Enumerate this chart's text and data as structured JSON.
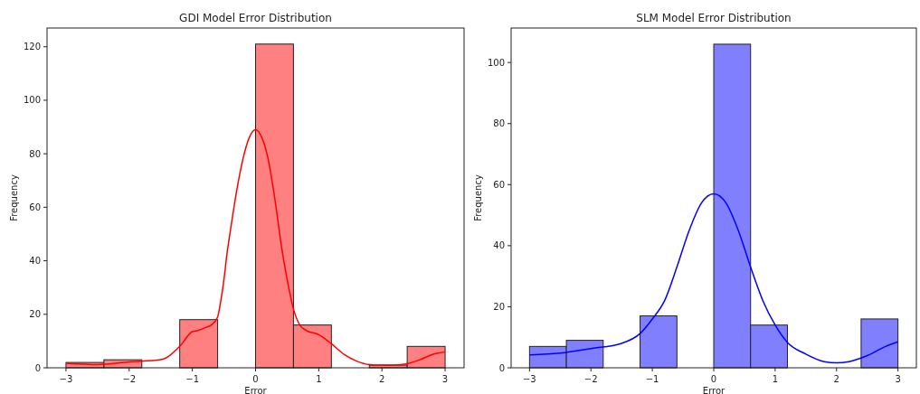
{
  "chart_data": [
    {
      "type": "histogram",
      "title": "GDI Model Error Distribution",
      "xlabel": "Error",
      "ylabel": "Frequency",
      "xlim": [
        -3.3,
        3.3
      ],
      "ylim": [
        0,
        127
      ],
      "xticks": [
        {
          "value": -3,
          "label": "−3"
        },
        {
          "value": -2,
          "label": "−2"
        },
        {
          "value": -1,
          "label": "−1"
        },
        0,
        1,
        2,
        3
      ],
      "yticks": [
        0,
        20,
        40,
        60,
        80,
        100,
        120
      ],
      "series": [
        {
          "color": "#ff8080",
          "bins": [
            -3,
            -2.4,
            -1.8,
            -1.2,
            -0.6,
            0,
            0.6,
            1.2,
            1.8,
            2.4,
            3
          ],
          "values": [
            2,
            3,
            0,
            18,
            0,
            121,
            16,
            0,
            1,
            8
          ]
        },
        {
          "type": "line",
          "color": "#ff0000",
          "x": [
            -3,
            -2.5,
            -2,
            -1.5,
            -1.2,
            -1,
            -0.9,
            -0.8,
            -0.7,
            -0.6,
            -0.55,
            -0.5,
            -0.45,
            -0.4,
            -0.3,
            -0.2,
            -0.1,
            0,
            0.1,
            0.2,
            0.3,
            0.4,
            0.5,
            0.6,
            0.7,
            0.8,
            1,
            1.2,
            1.4,
            1.6,
            1.8,
            2,
            2.2,
            2.4,
            2.6,
            2.8,
            3
          ],
          "values": [
            1.7,
            1.2,
            2.2,
            3,
            8,
            13.5,
            14,
            15,
            16,
            19,
            25,
            33,
            43,
            51,
            66,
            78,
            86,
            89,
            86,
            78,
            64,
            47,
            33,
            22,
            16,
            14,
            12.4,
            9,
            5,
            2.5,
            1.2,
            1,
            1,
            1.5,
            3,
            5,
            5.9
          ]
        }
      ]
    },
    {
      "type": "histogram",
      "title": "SLM Model Error Distribution",
      "xlabel": "Error",
      "ylabel": "Frequency",
      "xlim": [
        -3.3,
        3.3
      ],
      "ylim": [
        0,
        111.3
      ],
      "xticks": [
        {
          "value": -3,
          "label": "−3"
        },
        {
          "value": -2,
          "label": "−2"
        },
        {
          "value": -1,
          "label": "−1"
        },
        0,
        1,
        2,
        3
      ],
      "yticks": [
        0,
        20,
        40,
        60,
        80,
        100
      ],
      "series": [
        {
          "color": "#8080ff",
          "bins": [
            -3,
            -2.4,
            -1.8,
            -1.2,
            -0.6,
            0,
            0.6,
            1.2,
            1.8,
            2.4,
            3
          ],
          "values": [
            7,
            9,
            0,
            17,
            0,
            106,
            14,
            0,
            0,
            16
          ]
        },
        {
          "type": "line",
          "color": "#0000ff",
          "x": [
            -3,
            -2.5,
            -2,
            -1.5,
            -1.2,
            -1,
            -0.8,
            -0.6,
            -0.4,
            -0.2,
            0,
            0.2,
            0.4,
            0.6,
            0.8,
            1,
            1.2,
            1.5,
            1.8,
            2,
            2.2,
            2.5,
            2.8,
            3
          ],
          "values": [
            4.2,
            4.8,
            6.3,
            8,
            11.2,
            16,
            22,
            33,
            45,
            54,
            57,
            54,
            45,
            33,
            22,
            14,
            8.3,
            4.5,
            2,
            1.6,
            2,
            4,
            7,
            8.5
          ]
        }
      ]
    }
  ]
}
